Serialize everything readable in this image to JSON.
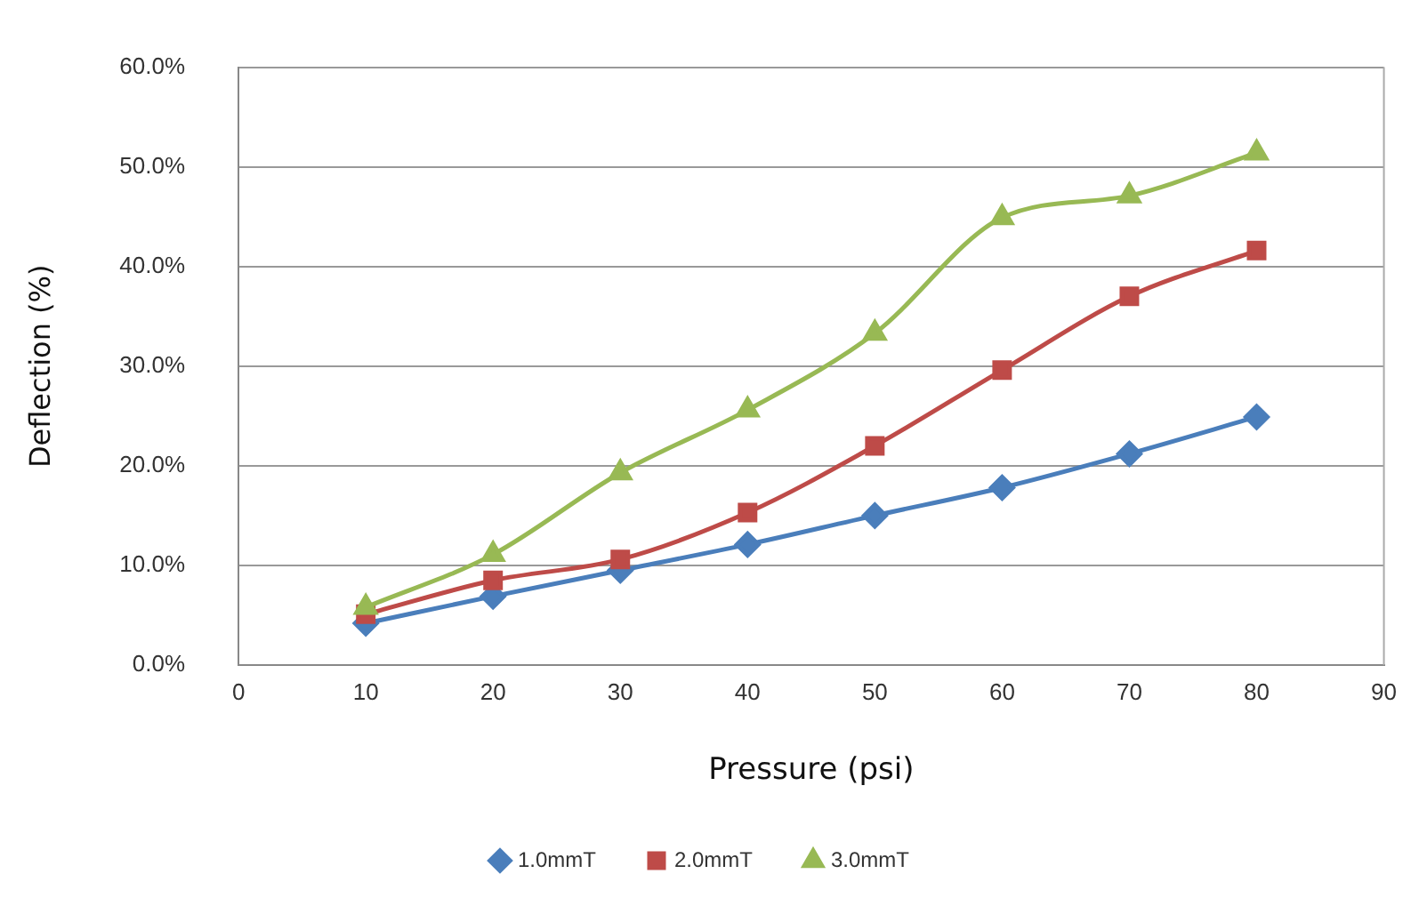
{
  "chart_data": {
    "type": "line",
    "xlabel": "Pressure (psi)",
    "ylabel": "Deflection (%)",
    "x": [
      10,
      20,
      30,
      40,
      50,
      60,
      70,
      80
    ],
    "series": [
      {
        "name": "1.0mmT",
        "color": "#4a7ebb",
        "marker": "diamond",
        "values": [
          4.2,
          6.9,
          9.5,
          12.1,
          15.0,
          17.8,
          21.2,
          24.9
        ]
      },
      {
        "name": "2.0mmT",
        "color": "#be4b48",
        "marker": "square",
        "values": [
          5.1,
          8.5,
          10.6,
          15.3,
          22.0,
          29.6,
          37.0,
          41.6
        ]
      },
      {
        "name": "3.0mmT",
        "color": "#98b954",
        "marker": "triangle",
        "values": [
          5.8,
          11.1,
          19.3,
          25.6,
          33.3,
          44.9,
          47.1,
          51.4
        ]
      }
    ],
    "xlim": [
      0,
      90
    ],
    "xticks": [
      0,
      10,
      20,
      30,
      40,
      50,
      60,
      70,
      80,
      90
    ],
    "ylim": [
      0,
      60
    ],
    "yticks": [
      {
        "value": 0,
        "label": "0.0%"
      },
      {
        "value": 10,
        "label": "10.0%"
      },
      {
        "value": 20,
        "label": "20.0%"
      },
      {
        "value": 30,
        "label": "30.0%"
      },
      {
        "value": 40,
        "label": "40.0%"
      },
      {
        "value": 50,
        "label": "50.0%"
      },
      {
        "value": 60,
        "label": "60.0%"
      }
    ],
    "grid": "y",
    "legend": "bottom",
    "line_style": "solid"
  }
}
